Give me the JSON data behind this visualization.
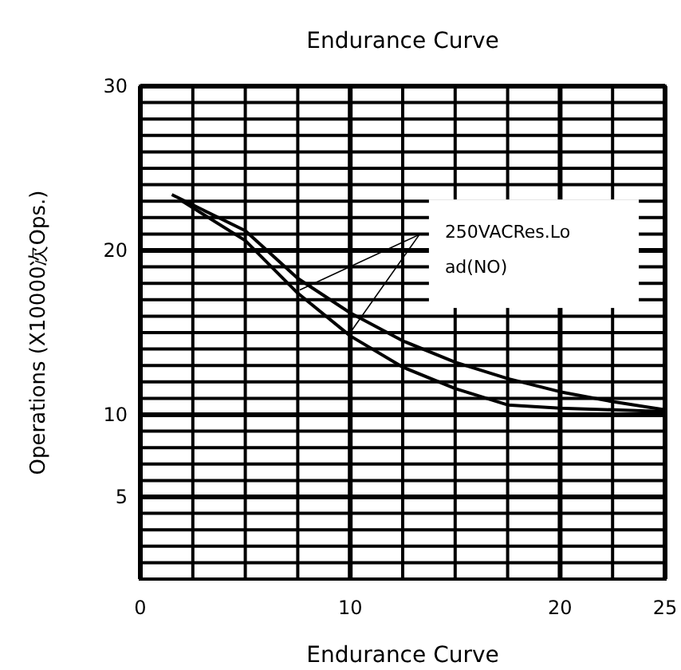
{
  "chart_data": {
    "type": "line",
    "title": "Endurance Curve",
    "xlabel": "Endurance Curve",
    "ylabel": "Operations (X10000次Ops.)",
    "x": [
      1.5,
      5,
      7.5,
      10,
      12.5,
      15,
      17.5,
      20,
      22.5,
      25
    ],
    "series": [
      {
        "color": "#000000",
        "values": [
          23.4,
          21.2,
          18.3,
          16.2,
          14.5,
          13.2,
          12.2,
          11.4,
          10.8,
          10.3
        ]
      },
      {
        "color": "#000000",
        "x": [
          2,
          5,
          7.5,
          10,
          12.5,
          15,
          17.5,
          20,
          22.5,
          25
        ],
        "values": [
          23.0,
          20.6,
          17.4,
          14.8,
          12.9,
          11.6,
          10.6,
          10.4,
          10.3,
          10.2
        ]
      }
    ],
    "xlim": [
      0,
      25
    ],
    "xticks": [
      0,
      {
        "value": 2.5,
        "label": null
      },
      {
        "value": 5,
        "label": null
      },
      {
        "value": 7.5,
        "label": null
      },
      10,
      {
        "value": 12.5,
        "label": null
      },
      {
        "value": 15,
        "label": null
      },
      {
        "value": 17.5,
        "label": null
      },
      20,
      {
        "value": 22.5,
        "label": null
      },
      25
    ],
    "ylim": [
      0,
      30
    ],
    "yticks": [
      {
        "value": 0,
        "label": null
      },
      {
        "value": 1,
        "label": null
      },
      {
        "value": 2,
        "label": null
      },
      {
        "value": 3,
        "label": null
      },
      {
        "value": 4,
        "label": null
      },
      5,
      {
        "value": 6,
        "label": null
      },
      {
        "value": 7,
        "label": null
      },
      {
        "value": 8,
        "label": null
      },
      {
        "value": 9,
        "label": null
      },
      10,
      {
        "value": 11,
        "label": null
      },
      {
        "value": 12,
        "label": null
      },
      {
        "value": 13,
        "label": null
      },
      {
        "value": 14,
        "label": null
      },
      {
        "value": 15,
        "label": null
      },
      {
        "value": 16,
        "label": null
      },
      {
        "value": 17,
        "label": null
      },
      {
        "value": 18,
        "label": null
      },
      {
        "value": 19,
        "label": null
      },
      20,
      {
        "value": 21,
        "label": null
      },
      {
        "value": 22,
        "label": null
      },
      {
        "value": 23,
        "label": null
      },
      {
        "value": 24,
        "label": null
      },
      {
        "value": 25,
        "label": null
      },
      {
        "value": 26,
        "label": null
      },
      {
        "value": 27,
        "label": null
      },
      {
        "value": 28,
        "label": null
      },
      {
        "value": 29,
        "label": null
      },
      30
    ],
    "grid": true,
    "marker": "none",
    "line_style": "solid",
    "annotations": [
      "250VACRes.Load(NO)"
    ]
  }
}
